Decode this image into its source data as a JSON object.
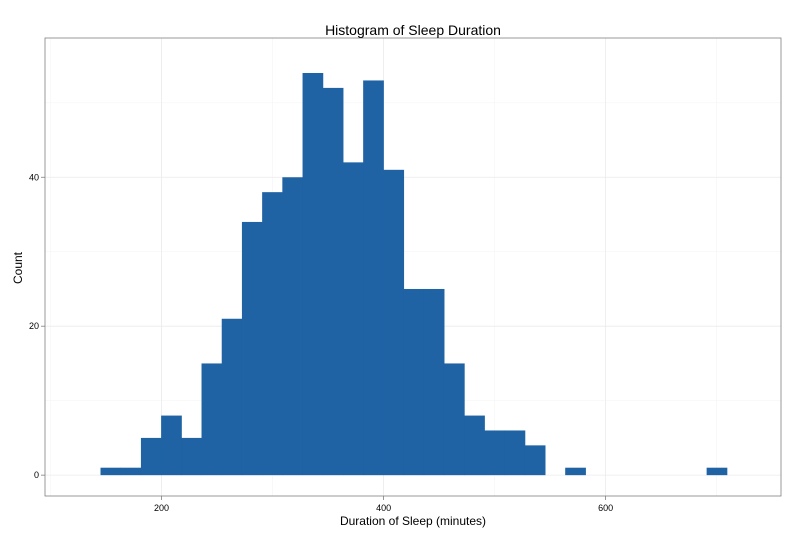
{
  "chart_data": {
    "type": "bar",
    "title": "Histogram of Sleep Duration",
    "xlabel": "Duration of Sleep (minutes)",
    "ylabel": "Count",
    "xlim": [
      95,
      758
    ],
    "ylim": [
      -2.8,
      58.7
    ],
    "x_ticks": [
      200,
      400,
      600
    ],
    "y_ticks": [
      0,
      20,
      40
    ],
    "grid": true,
    "bar_color": "#1f63a5",
    "bin_width": 18.2,
    "bins": [
      {
        "start": 145.0,
        "count": 1
      },
      {
        "start": 163.2,
        "count": 1
      },
      {
        "start": 181.4,
        "count": 5
      },
      {
        "start": 199.6,
        "count": 8
      },
      {
        "start": 217.8,
        "count": 5
      },
      {
        "start": 236.0,
        "count": 15
      },
      {
        "start": 254.2,
        "count": 21
      },
      {
        "start": 272.4,
        "count": 34
      },
      {
        "start": 290.6,
        "count": 38
      },
      {
        "start": 308.8,
        "count": 40
      },
      {
        "start": 327.0,
        "count": 54
      },
      {
        "start": 345.2,
        "count": 52
      },
      {
        "start": 363.4,
        "count": 42
      },
      {
        "start": 381.6,
        "count": 53
      },
      {
        "start": 399.8,
        "count": 41
      },
      {
        "start": 418.0,
        "count": 25
      },
      {
        "start": 436.2,
        "count": 25
      },
      {
        "start": 454.4,
        "count": 15
      },
      {
        "start": 472.6,
        "count": 8
      },
      {
        "start": 490.8,
        "count": 6
      },
      {
        "start": 509.0,
        "count": 6
      },
      {
        "start": 527.2,
        "count": 4
      },
      {
        "start": 563.6,
        "count": 1
      },
      {
        "start": 691.0,
        "count": 1
      }
    ]
  }
}
